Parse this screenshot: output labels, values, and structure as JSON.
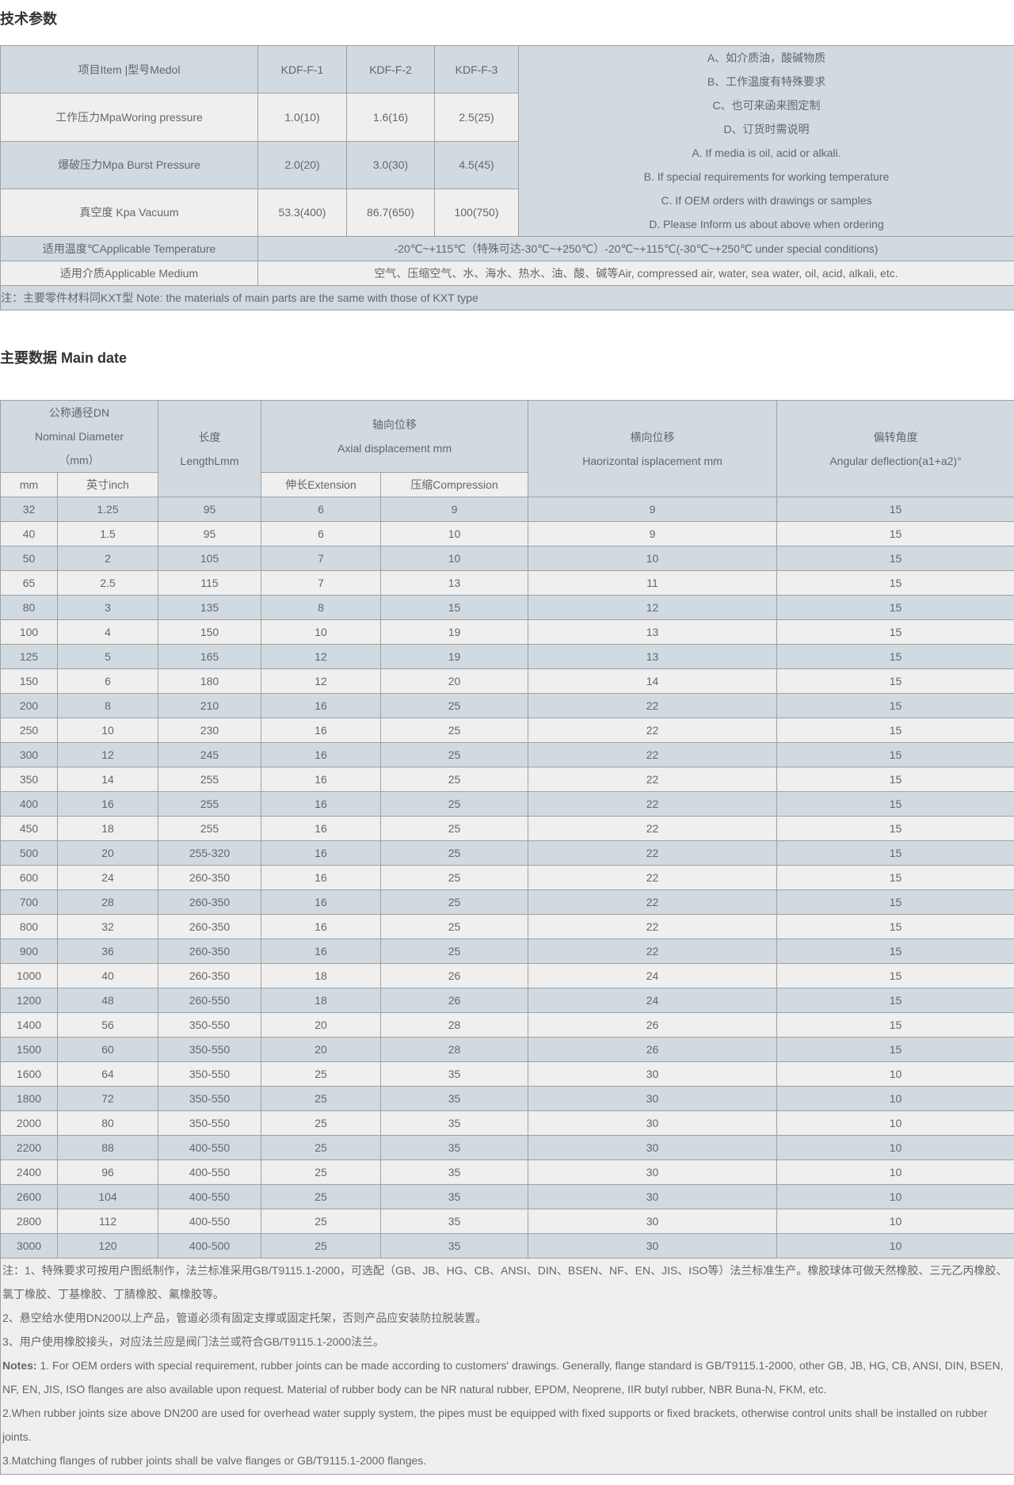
{
  "section1": {
    "title": "技术参数",
    "header": {
      "item": "项目Item |型号Medol",
      "models": [
        "KDF-F-1",
        "KDF-F-2",
        "KDF-F-3"
      ]
    },
    "rows": [
      {
        "label": "工作压力MpaWoring pressure",
        "values": [
          "1.0(10)",
          "1.6(16)",
          "2.5(25)"
        ]
      },
      {
        "label": "爆破压力Mpa Burst Pressure",
        "values": [
          "2.0(20)",
          "3.0(30)",
          "4.5(45)"
        ]
      },
      {
        "label": "真空度 Kpa Vacuum",
        "values": [
          "53.3(400)",
          "86.7(650)",
          "100(750)"
        ]
      }
    ],
    "side_notes": [
      "A、如介质油，酸碱物质",
      "B、工作温度有特殊要求",
      "C、也可来函来图定制",
      "D、订货时需说明",
      "A. If media is oil, acid or alkali.",
      "B. If special requirements for working temperature",
      "C. If OEM orders with drawings or samples",
      "D. Please Inform us about above when ordering"
    ],
    "temperature": {
      "label": "适用温度℃Applicable Temperature",
      "value": "-20℃~+115℃（特殊可达-30℃~+250℃）-20℃~+115℃(-30℃~+250℃ under special conditions)"
    },
    "medium": {
      "label": "适用介质Applicable Medium",
      "value": "空气、压缩空气、水、海水、热水、油、酸、碱等Air, compressed air, water, sea water, oil, acid, alkali, etc."
    },
    "note": "注：主要零件材料同KXT型 Note: the materials of main parts are the same with those of KXT type"
  },
  "section2": {
    "title": "主要数据 Main date",
    "header": {
      "dn": [
        "公称通径DN",
        "Nominal Diameter",
        "（mm）"
      ],
      "length": [
        "长度",
        "LengthLmm"
      ],
      "axial": [
        "轴向位移",
        "Axial displacement mm"
      ],
      "horizontal": [
        "横向位移",
        "Haorizontal isplacement mm"
      ],
      "angular": [
        "偏转角度",
        "Angular deflection(a1+a2)°"
      ],
      "mm": "mm",
      "inch": "英寸inch",
      "extension": "伸长Extension",
      "compression": "压缩Compression"
    },
    "rows": [
      [
        "32",
        "1.25",
        "95",
        "6",
        "9",
        "9",
        "15"
      ],
      [
        "40",
        "1.5",
        "95",
        "6",
        "10",
        "9",
        "15"
      ],
      [
        "50",
        "2",
        "105",
        "7",
        "10",
        "10",
        "15"
      ],
      [
        "65",
        "2.5",
        "115",
        "7",
        "13",
        "11",
        "15"
      ],
      [
        "80",
        "3",
        "135",
        "8",
        "15",
        "12",
        "15"
      ],
      [
        "100",
        "4",
        "150",
        "10",
        "19",
        "13",
        "15"
      ],
      [
        "125",
        "5",
        "165",
        "12",
        "19",
        "13",
        "15"
      ],
      [
        "150",
        "6",
        "180",
        "12",
        "20",
        "14",
        "15"
      ],
      [
        "200",
        "8",
        "210",
        "16",
        "25",
        "22",
        "15"
      ],
      [
        "250",
        "10",
        "230",
        "16",
        "25",
        "22",
        "15"
      ],
      [
        "300",
        "12",
        "245",
        "16",
        "25",
        "22",
        "15"
      ],
      [
        "350",
        "14",
        "255",
        "16",
        "25",
        "22",
        "15"
      ],
      [
        "400",
        "16",
        "255",
        "16",
        "25",
        "22",
        "15"
      ],
      [
        "450",
        "18",
        "255",
        "16",
        "25",
        "22",
        "15"
      ],
      [
        "500",
        "20",
        "255-320",
        "16",
        "25",
        "22",
        "15"
      ],
      [
        "600",
        "24",
        "260-350",
        "16",
        "25",
        "22",
        "15"
      ],
      [
        "700",
        "28",
        "260-350",
        "16",
        "25",
        "22",
        "15"
      ],
      [
        "800",
        "32",
        "260-350",
        "16",
        "25",
        "22",
        "15"
      ],
      [
        "900",
        "36",
        "260-350",
        "16",
        "25",
        "22",
        "15"
      ],
      [
        "1000",
        "40",
        "260-350",
        "18",
        "26",
        "24",
        "15"
      ],
      [
        "1200",
        "48",
        "260-550",
        "18",
        "26",
        "24",
        "15"
      ],
      [
        "1400",
        "56",
        "350-550",
        "20",
        "28",
        "26",
        "15"
      ],
      [
        "1500",
        "60",
        "350-550",
        "20",
        "28",
        "26",
        "15"
      ],
      [
        "1600",
        "64",
        "350-550",
        "25",
        "35",
        "30",
        "10"
      ],
      [
        "1800",
        "72",
        "350-550",
        "25",
        "35",
        "30",
        "10"
      ],
      [
        "2000",
        "80",
        "350-550",
        "25",
        "35",
        "30",
        "10"
      ],
      [
        "2200",
        "88",
        "400-550",
        "25",
        "35",
        "30",
        "10"
      ],
      [
        "2400",
        "96",
        "400-550",
        "25",
        "35",
        "30",
        "10"
      ],
      [
        "2600",
        "104",
        "400-550",
        "25",
        "35",
        "30",
        "10"
      ],
      [
        "2800",
        "112",
        "400-550",
        "25",
        "35",
        "30",
        "10"
      ],
      [
        "3000",
        "120",
        "400-500",
        "25",
        "35",
        "30",
        "10"
      ]
    ],
    "notes_cn": [
      "注：1、特殊要求可按用户图纸制作，法兰标准采用GB/T9115.1-2000，可选配（GB、JB、HG、CB、ANSI、DIN、BSEN、NF、EN、JIS、ISO等）法兰标准生产。橡胶球体可做天然橡胶、三元乙丙橡胶、氯丁橡胶、丁基橡胶、丁腈橡胶、氟橡胶等。",
      "2、悬空给水使用DN200以上产品，管道必须有固定支撑或固定托架，否则产品应安装防拉脱装置。",
      "3、用户使用橡胶接头，对应法兰应是阀门法兰或符合GB/T9115.1-2000法兰。"
    ],
    "notes_en_label": "Notes:",
    "notes_en": [
      " 1. For OEM orders with special requirement, rubber joints can be made according to customers' drawings. Generally, flange standard is GB/T9115.1-2000, other GB, JB, HG, CB, ANSI, DIN, BSEN, NF, EN, JIS, ISO flanges are also available upon request. Material of rubber body can be NR natural rubber, EPDM, Neoprene, IIR butyl rubber, NBR Buna-N, FKM, etc.",
      "2.When rubber joints size above DN200 are used for overhead water supply system, the pipes must be equipped with fixed supports or fixed brackets, otherwise control units shall be installed on rubber joints.",
      "3.Matching flanges of rubber joints shall be valve flanges or GB/T9115.1-2000 flanges."
    ]
  },
  "colors": {
    "row_blue": "#d1dae1",
    "row_light": "#efefef",
    "border": "#a0a0a0",
    "text": "#666666",
    "title": "#333333"
  }
}
